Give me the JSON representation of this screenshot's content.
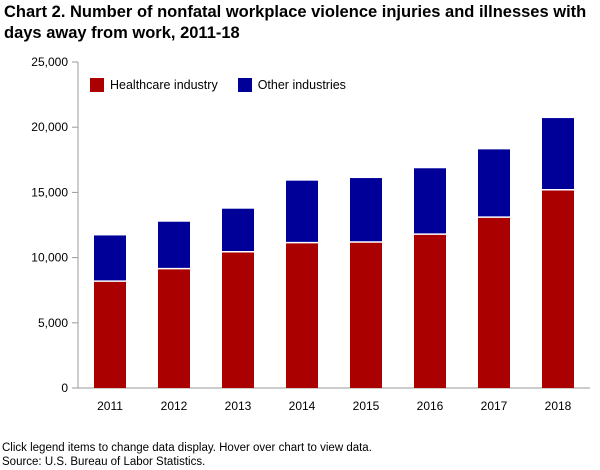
{
  "title": "Chart 2. Number of nonfatal workplace violence injuries and illnesses with days away from work, 2011-18",
  "note": "Click legend items to change data display. Hover over chart to view data.",
  "source": "Source: U.S. Bureau of Labor Statistics.",
  "chart_data": {
    "type": "bar",
    "stacked": true,
    "categories": [
      "2011",
      "2012",
      "2013",
      "2014",
      "2015",
      "2016",
      "2017",
      "2018"
    ],
    "series": [
      {
        "name": "Healthcare industry",
        "color": "#aa0000",
        "values": [
          8200,
          9150,
          10450,
          11150,
          11200,
          11800,
          13100,
          15200
        ]
      },
      {
        "name": "Other industries",
        "color": "#000099",
        "values": [
          3500,
          3600,
          3300,
          4750,
          4900,
          5050,
          5200,
          5500
        ]
      }
    ],
    "ylim": [
      0,
      25000
    ],
    "yticks": [
      0,
      5000,
      10000,
      15000,
      20000,
      25000
    ],
    "ytick_labels": [
      "0",
      "5,000",
      "10,000",
      "15,000",
      "20,000",
      "25,000"
    ],
    "legend_position": "top-left",
    "grid": false
  }
}
